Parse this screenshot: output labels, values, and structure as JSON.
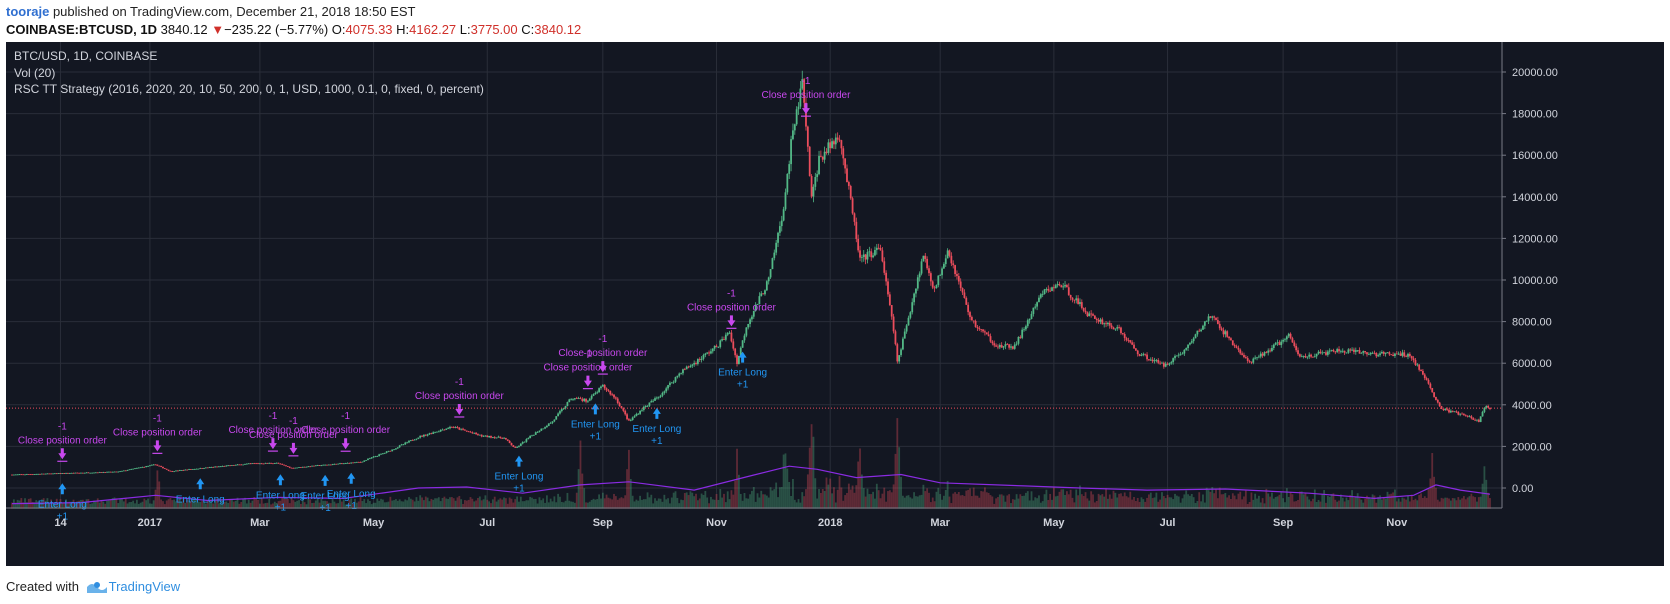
{
  "header": {
    "author": "tooraje",
    "published_text": " published on TradingView.com, December 21, 2018 18:50 EST",
    "symbol": "COINBASE:BTCUSD, 1D",
    "last": "3840.12",
    "change": "−235.22 (−5.77%)",
    "o_label": "O:",
    "o": "4075.33",
    "h_label": "H:",
    "h": "4162.27",
    "l_label": "L:",
    "l": "3775.00",
    "c_label": "C:",
    "c": "3840.12"
  },
  "legend": {
    "line1": "BTC/USD, 1D, COINBASE",
    "line2": "Vol (20)",
    "line3": "RSC TT Strategy (2016, 2020, 20, 10, 50, 200, 0, 1, USD, 1000, 0.1, 0, fixed, 0, percent)"
  },
  "footer": {
    "created": "Created with",
    "brand": "TradingView"
  },
  "colors": {
    "bg": "#131722",
    "grid": "#2a2e39",
    "up": "#53b987",
    "down": "#eb4d5c",
    "vol_ma": "#8a2be2",
    "enter": "#2196f3",
    "close": "#c848ee"
  },
  "chart_data": {
    "type": "candlestick",
    "price_ticks": [
      "20000.00",
      "18000.00",
      "16000.00",
      "14000.00",
      "12000.00",
      "10000.00",
      "8000.00",
      "6000.00",
      "4000.00",
      "2000.00",
      "0.00"
    ],
    "price_tick_values": [
      20000,
      18000,
      16000,
      14000,
      12000,
      10000,
      8000,
      6000,
      4000,
      2000,
      0
    ],
    "ylim": [
      -1000,
      21500
    ],
    "x_labels": [
      "14",
      "2017",
      "Mar",
      "May",
      "Jul",
      "Sep",
      "Nov",
      "2018",
      "Mar",
      "May",
      "Jul",
      "Sep",
      "Nov"
    ],
    "x_label_dates": [
      "2016-11-14",
      "2017-01-01",
      "2017-03-01",
      "2017-05-01",
      "2017-07-01",
      "2017-09-01",
      "2017-11-01",
      "2018-01-01",
      "2018-03-01",
      "2018-05-01",
      "2018-07-01",
      "2018-09-01",
      "2018-11-01"
    ],
    "xlim": [
      "2016-10-19",
      "2018-12-21"
    ],
    "current_price": 3840.12,
    "price_path": [
      [
        "2016-10-19",
        640
      ],
      [
        "2016-11-14",
        705
      ],
      [
        "2016-12-15",
        780
      ],
      [
        "2017-01-04",
        1130
      ],
      [
        "2017-01-12",
        800
      ],
      [
        "2017-02-01",
        985
      ],
      [
        "2017-02-25",
        1180
      ],
      [
        "2017-03-10",
        1200
      ],
      [
        "2017-03-18",
        960
      ],
      [
        "2017-04-01",
        1080
      ],
      [
        "2017-04-24",
        1250
      ],
      [
        "2017-05-10",
        1800
      ],
      [
        "2017-05-25",
        2450
      ],
      [
        "2017-06-12",
        2950
      ],
      [
        "2017-06-28",
        2500
      ],
      [
        "2017-07-10",
        2400
      ],
      [
        "2017-07-16",
        1900
      ],
      [
        "2017-07-26",
        2600
      ],
      [
        "2017-08-05",
        3200
      ],
      [
        "2017-08-15",
        4300
      ],
      [
        "2017-08-24",
        4200
      ],
      [
        "2017-09-01",
        4900
      ],
      [
        "2017-09-08",
        4300
      ],
      [
        "2017-09-15",
        3200
      ],
      [
        "2017-09-22",
        3800
      ],
      [
        "2017-10-01",
        4400
      ],
      [
        "2017-10-13",
        5600
      ],
      [
        "2017-10-20",
        6000
      ],
      [
        "2017-11-01",
        6800
      ],
      [
        "2017-11-08",
        7500
      ],
      [
        "2017-11-12",
        5900
      ],
      [
        "2017-11-17",
        7800
      ],
      [
        "2017-11-29",
        10000
      ],
      [
        "2017-12-07",
        13500
      ],
      [
        "2017-12-11",
        16500
      ],
      [
        "2017-12-17",
        19500
      ],
      [
        "2017-12-22",
        14000
      ],
      [
        "2017-12-26",
        15800
      ],
      [
        "2018-01-06",
        17000
      ],
      [
        "2018-01-17",
        11000
      ],
      [
        "2018-01-28",
        11500
      ],
      [
        "2018-02-05",
        7000
      ],
      [
        "2018-02-06",
        6000
      ],
      [
        "2018-02-20",
        11200
      ],
      [
        "2018-02-26",
        9500
      ],
      [
        "2018-03-05",
        11500
      ],
      [
        "2018-03-18",
        8000
      ],
      [
        "2018-04-01",
        6800
      ],
      [
        "2018-04-10",
        6800
      ],
      [
        "2018-04-25",
        9400
      ],
      [
        "2018-05-05",
        9800
      ],
      [
        "2018-05-20",
        8300
      ],
      [
        "2018-06-05",
        7600
      ],
      [
        "2018-06-15",
        6500
      ],
      [
        "2018-06-29",
        5900
      ],
      [
        "2018-07-10",
        6600
      ],
      [
        "2018-07-24",
        8300
      ],
      [
        "2018-08-10",
        6400
      ],
      [
        "2018-08-14",
        6000
      ],
      [
        "2018-09-04",
        7300
      ],
      [
        "2018-09-10",
        6300
      ],
      [
        "2018-10-01",
        6600
      ],
      [
        "2018-10-20",
        6450
      ],
      [
        "2018-11-08",
        6400
      ],
      [
        "2018-11-14",
        5600
      ],
      [
        "2018-11-25",
        3800
      ],
      [
        "2018-12-07",
        3500
      ],
      [
        "2018-12-15",
        3200
      ],
      [
        "2018-12-19",
        4000
      ],
      [
        "2018-12-21",
        3840
      ]
    ],
    "vol_ma_path": [
      [
        "2016-10-19",
        -750
      ],
      [
        "2016-11-25",
        -700
      ],
      [
        "2017-01-04",
        -350
      ],
      [
        "2017-02-01",
        -600
      ],
      [
        "2017-03-10",
        -450
      ],
      [
        "2017-04-15",
        -500
      ],
      [
        "2017-05-25",
        0
      ],
      [
        "2017-06-20",
        50
      ],
      [
        "2017-07-20",
        -250
      ],
      [
        "2017-08-20",
        150
      ],
      [
        "2017-09-15",
        300
      ],
      [
        "2017-10-20",
        -100
      ],
      [
        "2017-11-20",
        600
      ],
      [
        "2017-12-10",
        1050
      ],
      [
        "2017-12-25",
        900
      ],
      [
        "2018-01-15",
        500
      ],
      [
        "2018-02-08",
        650
      ],
      [
        "2018-03-01",
        250
      ],
      [
        "2018-04-15",
        100
      ],
      [
        "2018-05-15",
        0
      ],
      [
        "2018-06-20",
        -100
      ],
      [
        "2018-08-01",
        -50
      ],
      [
        "2018-09-15",
        -250
      ],
      [
        "2018-10-20",
        -500
      ],
      [
        "2018-11-10",
        -350
      ],
      [
        "2018-11-22",
        150
      ],
      [
        "2018-12-05",
        -100
      ],
      [
        "2018-12-21",
        -300
      ]
    ],
    "volume_spikes": [
      [
        "2017-01-05",
        1000
      ],
      [
        "2017-08-20",
        2500
      ],
      [
        "2017-09-15",
        2000
      ],
      [
        "2017-11-12",
        2200
      ],
      [
        "2017-12-08",
        3000
      ],
      [
        "2017-12-22",
        4500
      ],
      [
        "2018-01-17",
        2700
      ],
      [
        "2018-02-06",
        3800
      ],
      [
        "2018-11-20",
        2600
      ],
      [
        "2018-12-18",
        1500
      ]
    ],
    "enter_long": [
      {
        "date": "2016-11-15",
        "label": "Enter Long",
        "qty": "+1"
      },
      {
        "date": "2017-01-28",
        "label": "Enter Long",
        "qty": ""
      },
      {
        "date": "2017-03-12",
        "label": "Enter Long",
        "qty": "+1"
      },
      {
        "date": "2017-04-05",
        "label": "Enter Long",
        "qty": "+1"
      },
      {
        "date": "2017-04-19",
        "label": "Enter Long",
        "qty": "+1"
      },
      {
        "date": "2017-07-18",
        "label": "Enter Long",
        "qty": "+1"
      },
      {
        "date": "2017-08-28",
        "label": "Enter Long",
        "qty": "+1"
      },
      {
        "date": "2017-09-30",
        "label": "Enter Long",
        "qty": "+1"
      },
      {
        "date": "2017-11-15",
        "label": "Enter Long",
        "qty": "+1"
      }
    ],
    "close_position": [
      {
        "date": "2016-11-15",
        "label": "Close position order",
        "qty": "-1"
      },
      {
        "date": "2017-01-05",
        "label": "Close position order",
        "qty": "-1"
      },
      {
        "date": "2017-03-08",
        "label": "Close position order",
        "qty": "-1"
      },
      {
        "date": "2017-03-19",
        "label": "Close position order",
        "qty": "-1"
      },
      {
        "date": "2017-04-16",
        "label": "Close position order",
        "qty": "-1"
      },
      {
        "date": "2017-06-16",
        "label": "Close position order",
        "qty": "-1"
      },
      {
        "date": "2017-08-24",
        "label": "Close position order",
        "qty": "-1"
      },
      {
        "date": "2017-09-01",
        "label": "Close position order",
        "qty": "-1"
      },
      {
        "date": "2017-11-09",
        "label": "Close position order",
        "qty": "-1"
      },
      {
        "date": "2017-12-19",
        "label": "Close position order",
        "qty": "-1"
      }
    ]
  }
}
